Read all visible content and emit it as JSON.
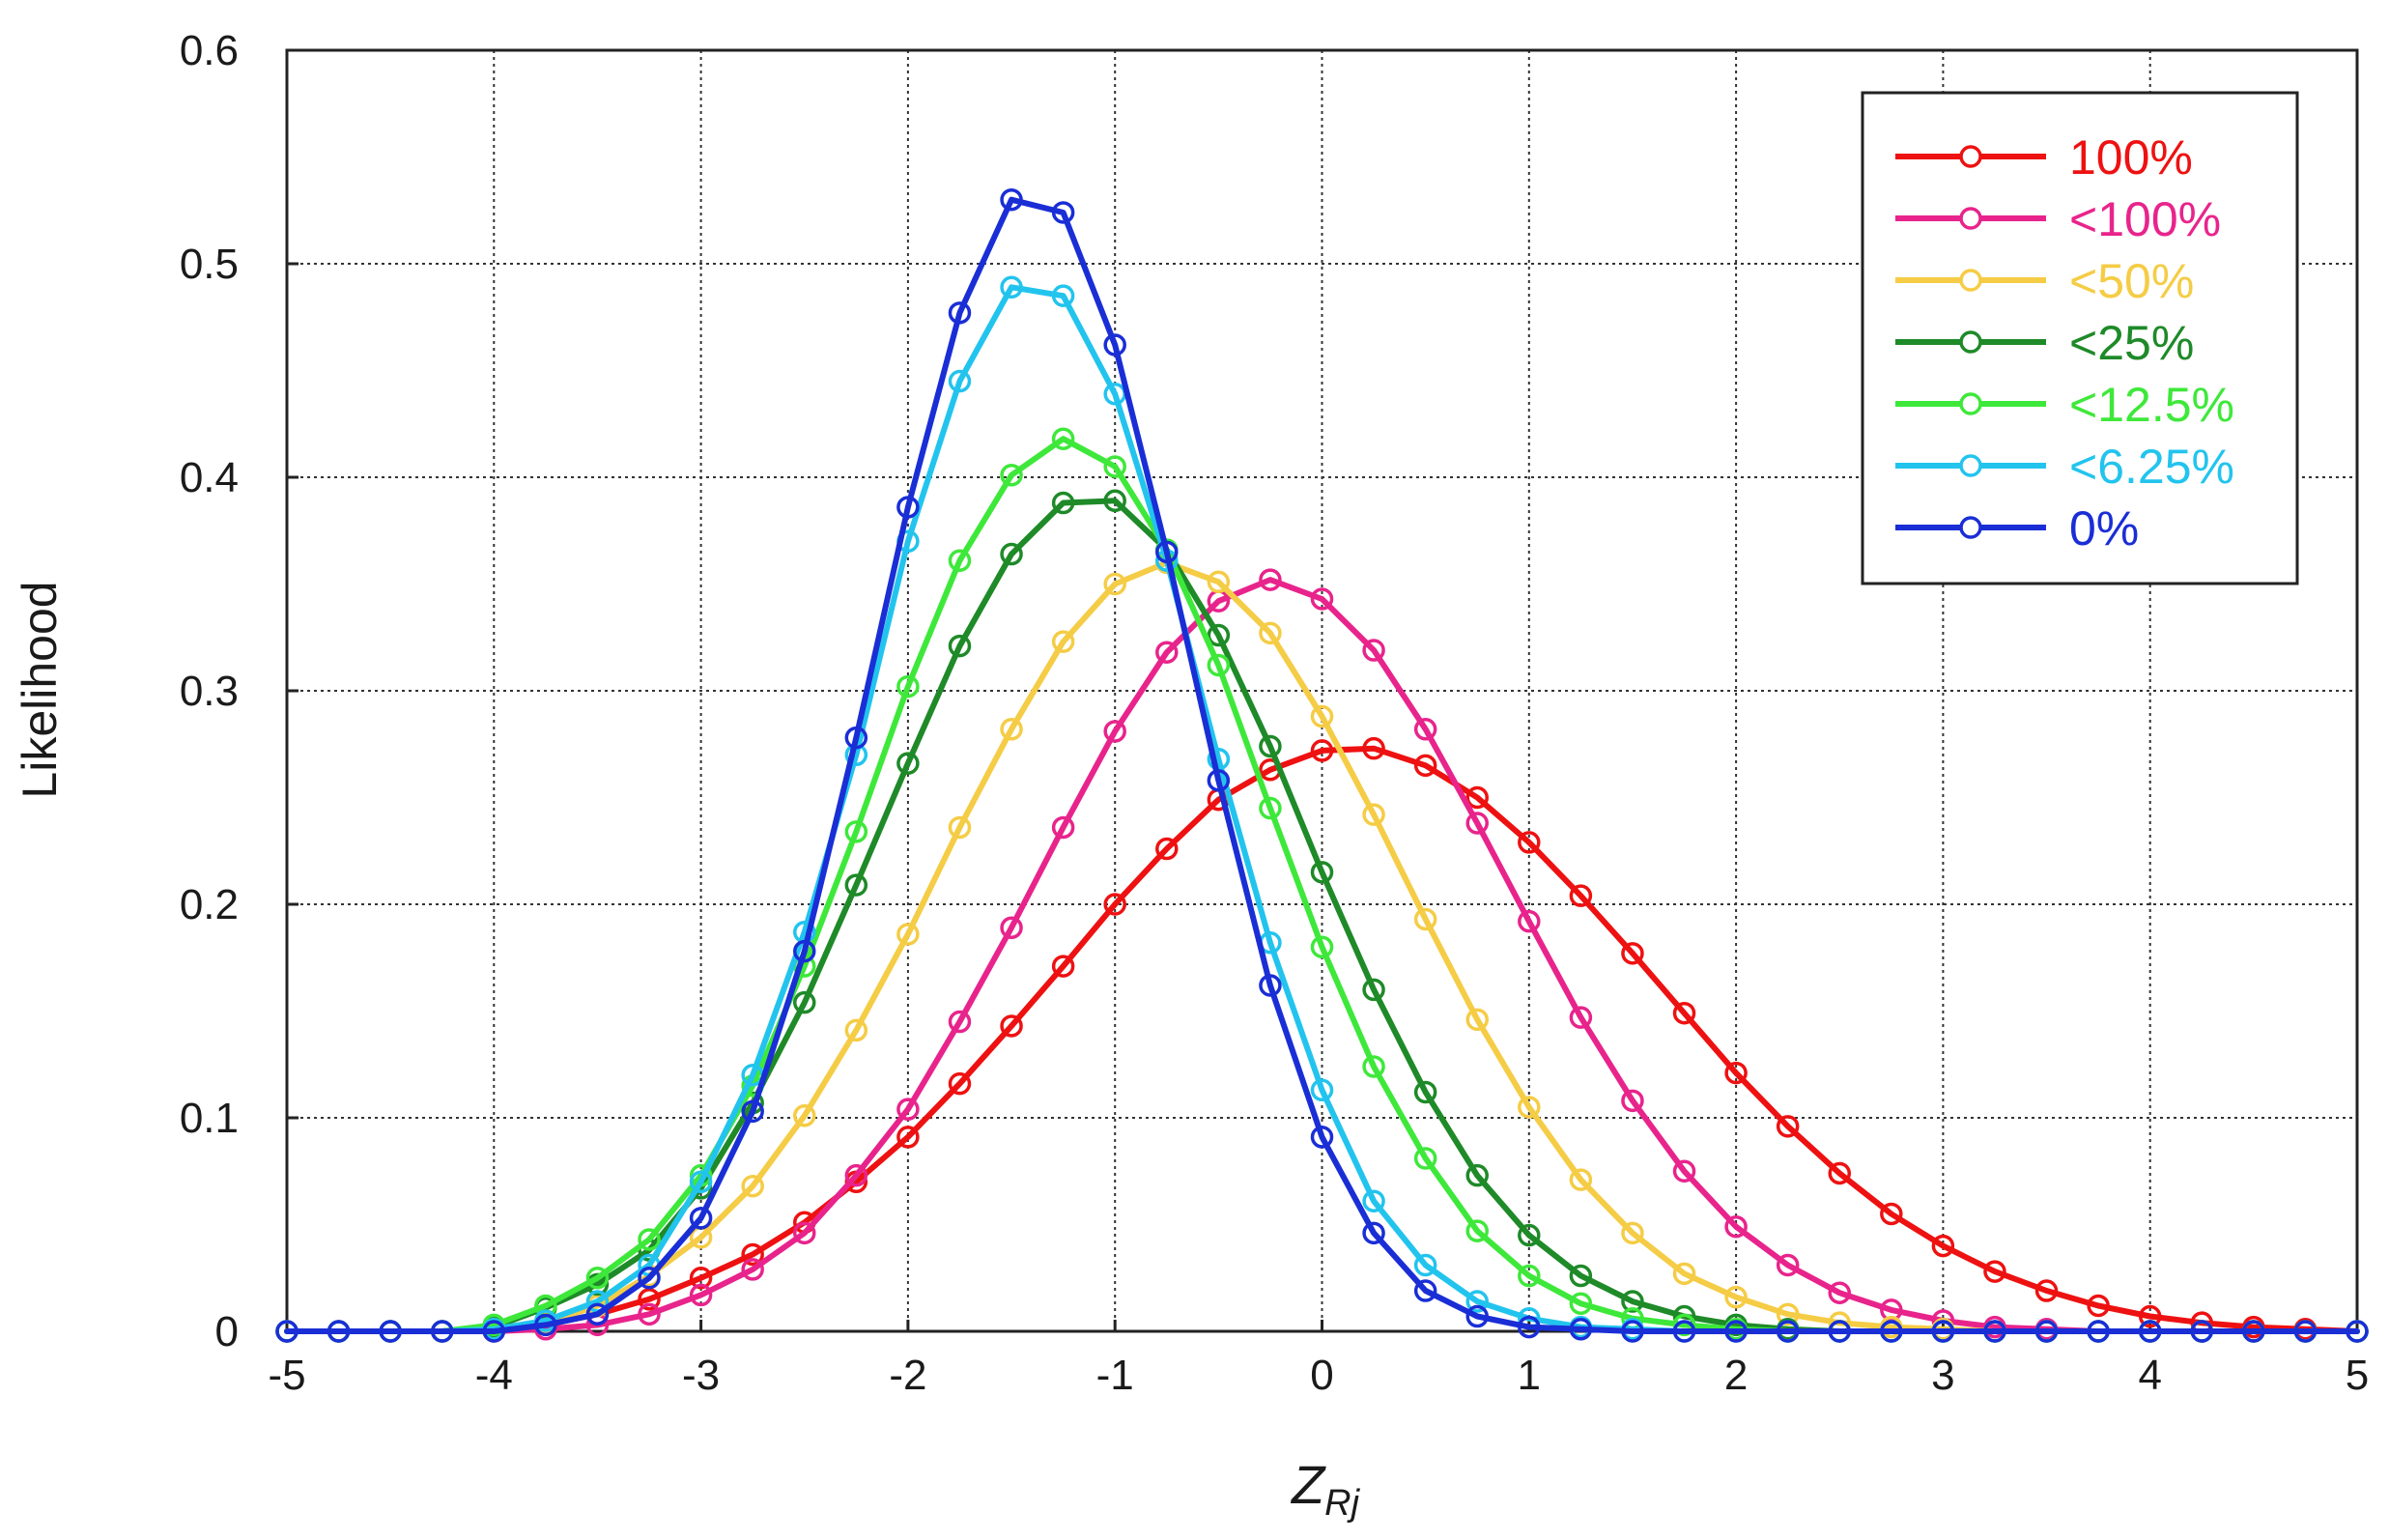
{
  "chart_data": {
    "type": "line",
    "title": "",
    "xlabel": "Z",
    "xlabel_sub": "Rj",
    "ylabel": "Likelihood",
    "xlim": [
      -5,
      5
    ],
    "ylim": [
      0,
      0.6
    ],
    "xticks": [
      "-5",
      "-4",
      "-3",
      "-2",
      "-1",
      "0",
      "1",
      "2",
      "3",
      "4",
      "5"
    ],
    "yticks": [
      "0",
      "0.1",
      "0.2",
      "0.3",
      "0.4",
      "0.5",
      "0.6"
    ],
    "grid": true,
    "legend_position": "top-right",
    "marker": "open-circle",
    "x": [
      -5,
      -4.75,
      -4.5,
      -4.25,
      -4,
      -3.75,
      -3.5,
      -3.25,
      -3,
      -2.75,
      -2.5,
      -2.25,
      -2,
      -1.75,
      -1.5,
      -1.25,
      -1,
      -0.75,
      -0.5,
      -0.25,
      0,
      0.25,
      0.5,
      0.75,
      1,
      1.25,
      1.5,
      1.75,
      2,
      2.25,
      2.5,
      2.75,
      3,
      3.25,
      3.5,
      3.75,
      4,
      4.25,
      4.5,
      4.75,
      5
    ],
    "series": [
      {
        "name": "100%",
        "color": "#ee1111",
        "values": [
          0.0,
          0.0,
          0.0,
          0.0,
          0.001,
          0.003,
          0.008,
          0.015,
          0.025,
          0.036,
          0.051,
          0.07,
          0.091,
          0.116,
          0.143,
          0.171,
          0.2,
          0.226,
          0.249,
          0.263,
          0.272,
          0.273,
          0.265,
          0.25,
          0.229,
          0.204,
          0.177,
          0.149,
          0.121,
          0.096,
          0.074,
          0.055,
          0.04,
          0.028,
          0.019,
          0.012,
          0.007,
          0.004,
          0.002,
          0.001,
          0.0
        ]
      },
      {
        "name": "<100%",
        "color": "#e8248c",
        "values": [
          0.0,
          0.0,
          0.0,
          0.0,
          0.0,
          0.001,
          0.003,
          0.008,
          0.017,
          0.029,
          0.046,
          0.073,
          0.104,
          0.145,
          0.189,
          0.236,
          0.281,
          0.318,
          0.342,
          0.352,
          0.343,
          0.319,
          0.282,
          0.238,
          0.192,
          0.147,
          0.108,
          0.075,
          0.049,
          0.031,
          0.018,
          0.01,
          0.005,
          0.002,
          0.001,
          0.0,
          0.0,
          0.0,
          0.0,
          0.0,
          0.0
        ]
      },
      {
        "name": "<50%",
        "color": "#f5cc45",
        "values": [
          0.0,
          0.0,
          0.0,
          0.0,
          0.001,
          0.004,
          0.012,
          0.026,
          0.044,
          0.068,
          0.101,
          0.141,
          0.186,
          0.236,
          0.282,
          0.323,
          0.35,
          0.36,
          0.351,
          0.327,
          0.288,
          0.242,
          0.193,
          0.146,
          0.105,
          0.071,
          0.046,
          0.027,
          0.016,
          0.008,
          0.004,
          0.002,
          0.001,
          0.0,
          0.0,
          0.0,
          0.0,
          0.0,
          0.0,
          0.0,
          0.0
        ]
      },
      {
        "name": "<25%",
        "color": "#1e8a28",
        "values": [
          0.0,
          0.0,
          0.0,
          0.0,
          0.002,
          0.011,
          0.022,
          0.038,
          0.067,
          0.107,
          0.154,
          0.209,
          0.266,
          0.321,
          0.364,
          0.388,
          0.389,
          0.366,
          0.326,
          0.274,
          0.215,
          0.16,
          0.112,
          0.073,
          0.045,
          0.026,
          0.014,
          0.007,
          0.003,
          0.001,
          0.0,
          0.0,
          0.0,
          0.0,
          0.0,
          0.0,
          0.0,
          0.0,
          0.0,
          0.0,
          0.0
        ]
      },
      {
        "name": "<12.5%",
        "color": "#3ee83a",
        "values": [
          0.0,
          0.0,
          0.0,
          0.0,
          0.003,
          0.012,
          0.025,
          0.043,
          0.073,
          0.115,
          0.171,
          0.234,
          0.302,
          0.361,
          0.401,
          0.418,
          0.405,
          0.366,
          0.312,
          0.245,
          0.18,
          0.124,
          0.081,
          0.047,
          0.026,
          0.013,
          0.006,
          0.003,
          0.001,
          0.0,
          0.0,
          0.0,
          0.0,
          0.0,
          0.0,
          0.0,
          0.0,
          0.0,
          0.0,
          0.0,
          0.0
        ]
      },
      {
        "name": "<6.25%",
        "color": "#22c4ee",
        "values": [
          0.0,
          0.0,
          0.0,
          0.0,
          0.001,
          0.005,
          0.014,
          0.031,
          0.07,
          0.12,
          0.187,
          0.27,
          0.37,
          0.445,
          0.489,
          0.485,
          0.439,
          0.361,
          0.268,
          0.182,
          0.113,
          0.061,
          0.031,
          0.014,
          0.006,
          0.002,
          0.001,
          0.0,
          0.0,
          0.0,
          0.0,
          0.0,
          0.0,
          0.0,
          0.0,
          0.0,
          0.0,
          0.0,
          0.0,
          0.0,
          0.0
        ]
      },
      {
        "name": "0%",
        "color": "#1a2ed6",
        "values": [
          0.0,
          0.0,
          0.0,
          0.0,
          0.0,
          0.003,
          0.008,
          0.025,
          0.053,
          0.103,
          0.178,
          0.278,
          0.386,
          0.477,
          0.53,
          0.524,
          0.462,
          0.365,
          0.258,
          0.162,
          0.091,
          0.046,
          0.019,
          0.007,
          0.002,
          0.001,
          0.0,
          0.0,
          0.0,
          0.0,
          0.0,
          0.0,
          0.0,
          0.0,
          0.0,
          0.0,
          0.0,
          0.0,
          0.0,
          0.0,
          0.0
        ]
      }
    ]
  }
}
